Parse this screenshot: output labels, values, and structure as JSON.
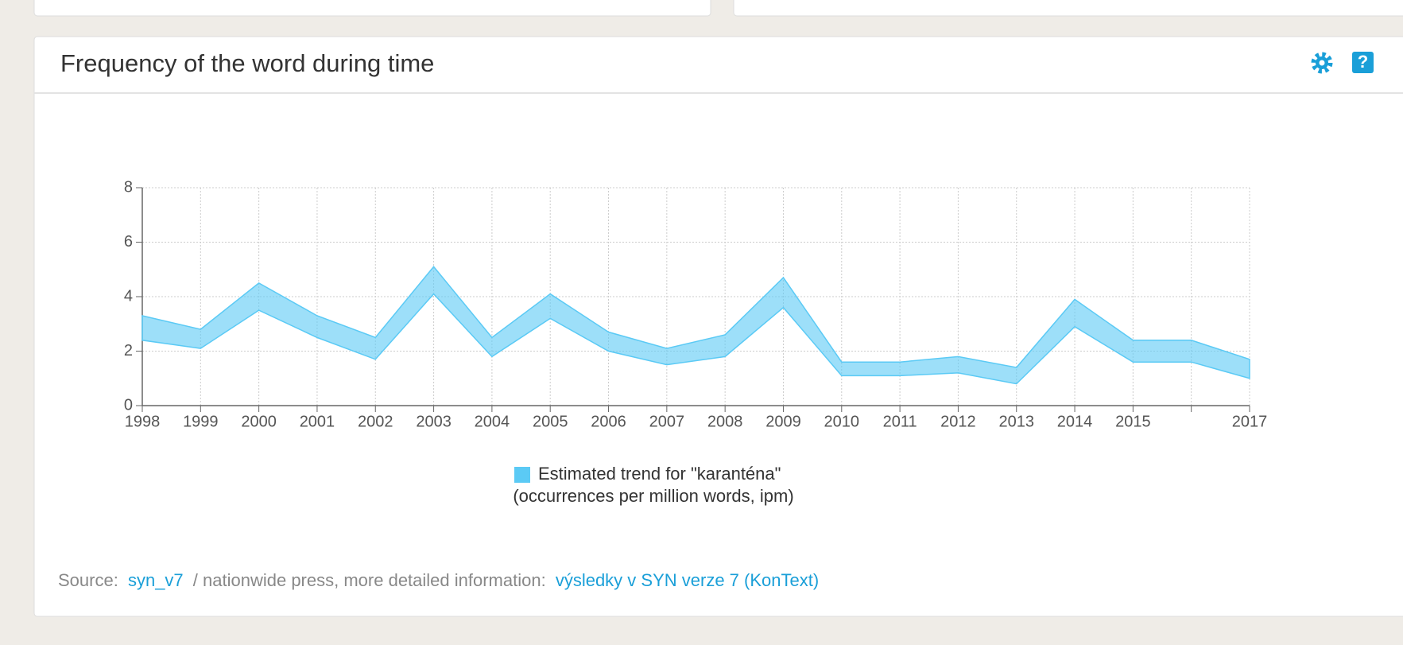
{
  "header": {
    "title": "Frequency of the word during time"
  },
  "chart_data": {
    "type": "range",
    "categories": [
      "1998",
      "1999",
      "2000",
      "2001",
      "2002",
      "2003",
      "2004",
      "2005",
      "2006",
      "2007",
      "2008",
      "2009",
      "2010",
      "2011",
      "2012",
      "2013",
      "2014",
      "2015",
      null,
      "2017"
    ],
    "series": [
      {
        "name": "Estimated trend for \"karanténa\"",
        "color": "#5bcaf5",
        "upper": [
          3.3,
          2.8,
          4.5,
          3.3,
          2.5,
          5.1,
          2.5,
          4.1,
          2.7,
          2.1,
          2.6,
          4.7,
          1.6,
          1.6,
          1.8,
          1.4,
          3.9,
          2.4,
          2.4,
          1.7
        ],
        "lower": [
          2.4,
          2.1,
          3.5,
          2.5,
          1.7,
          4.1,
          1.8,
          3.2,
          2.0,
          1.5,
          1.8,
          3.6,
          1.1,
          1.1,
          1.2,
          0.8,
          2.9,
          1.6,
          1.6,
          1.0
        ]
      }
    ],
    "legend_note": "(occurrences per million words, ipm)",
    "ylim": [
      0,
      8
    ],
    "yticks": [
      0,
      2,
      4,
      6,
      8
    ],
    "grid": true
  },
  "source": {
    "label": "Source:",
    "corpus": "syn_v7",
    "text": "/ nationwide press, more detailed information:",
    "link": "výsledky v SYN verze 7 (KonText)"
  }
}
